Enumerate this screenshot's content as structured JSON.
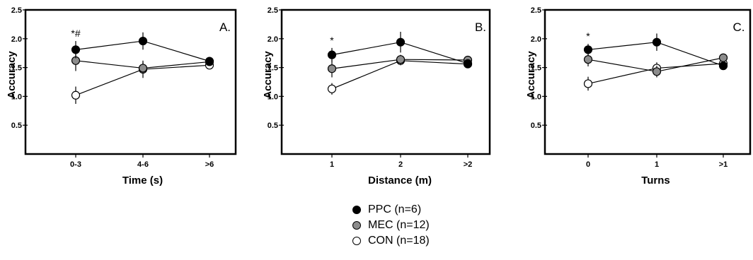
{
  "chart_data": [
    {
      "type": "line",
      "panel_label": "A.",
      "xlabel": "Time (s)",
      "ylabel": "Accuracy",
      "categories": [
        "0-3",
        "4-6",
        ">6"
      ],
      "yticks": [
        "0.5",
        "1.0",
        "1.5",
        "2.0",
        "2.5"
      ],
      "ylim": [
        0,
        2.5
      ],
      "annotations": [
        {
          "text": "*#",
          "category": "0-3"
        }
      ],
      "series": [
        {
          "name": "PPC (n=6)",
          "values": [
            1.81,
            1.96,
            1.61
          ],
          "errors": [
            0.15,
            0.15,
            0.05
          ]
        },
        {
          "name": "MEC (n=12)",
          "values": [
            1.62,
            1.49,
            1.6
          ],
          "errors": [
            0.18,
            0.1,
            0.05
          ]
        },
        {
          "name": "CON (n=18)",
          "values": [
            1.02,
            1.47,
            1.54
          ],
          "errors": [
            0.15,
            0.15,
            0.05
          ]
        }
      ]
    },
    {
      "type": "line",
      "panel_label": "B.",
      "xlabel": "Distance (m)",
      "ylabel": "Accuracy",
      "categories": [
        "1",
        "2",
        ">2"
      ],
      "yticks": [
        "0.5",
        "1.0",
        "1.5",
        "2.0",
        "2.5"
      ],
      "ylim": [
        0,
        2.5
      ],
      "annotations": [
        {
          "text": "*",
          "category": "1"
        }
      ],
      "series": [
        {
          "name": "PPC (n=6)",
          "values": [
            1.72,
            1.94,
            1.57
          ],
          "errors": [
            0.12,
            0.18,
            0.05
          ]
        },
        {
          "name": "MEC (n=12)",
          "values": [
            1.48,
            1.64,
            1.63
          ],
          "errors": [
            0.15,
            0.08,
            0.05
          ]
        },
        {
          "name": "CON (n=18)",
          "values": [
            1.13,
            1.62,
            1.56
          ],
          "errors": [
            0.1,
            0.08,
            0.05
          ]
        }
      ]
    },
    {
      "type": "line",
      "panel_label": "C.",
      "xlabel": "Turns",
      "ylabel": "Accuracy",
      "categories": [
        "0",
        "1",
        ">1"
      ],
      "yticks": [
        "0.5",
        "1.0",
        "1.5",
        "2.0",
        "2.5"
      ],
      "ylim": [
        0,
        2.5
      ],
      "annotations": [
        {
          "text": "*",
          "category": "0"
        }
      ],
      "series": [
        {
          "name": "PPC (n=6)",
          "values": [
            1.81,
            1.94,
            1.53
          ],
          "errors": [
            0.1,
            0.15,
            0.05
          ]
        },
        {
          "name": "MEC (n=12)",
          "values": [
            1.64,
            1.43,
            1.67
          ],
          "errors": [
            0.12,
            0.1,
            0.05
          ]
        },
        {
          "name": "CON (n=18)",
          "values": [
            1.22,
            1.49,
            1.57
          ],
          "errors": [
            0.12,
            0.1,
            0.05
          ]
        }
      ]
    }
  ],
  "legend": {
    "items": [
      {
        "label": "PPC (n=6)",
        "color": "#000000"
      },
      {
        "label": "MEC (n=12)",
        "color": "#8c8c8c"
      },
      {
        "label": "CON (n=18)",
        "color": "#ffffff"
      }
    ]
  }
}
